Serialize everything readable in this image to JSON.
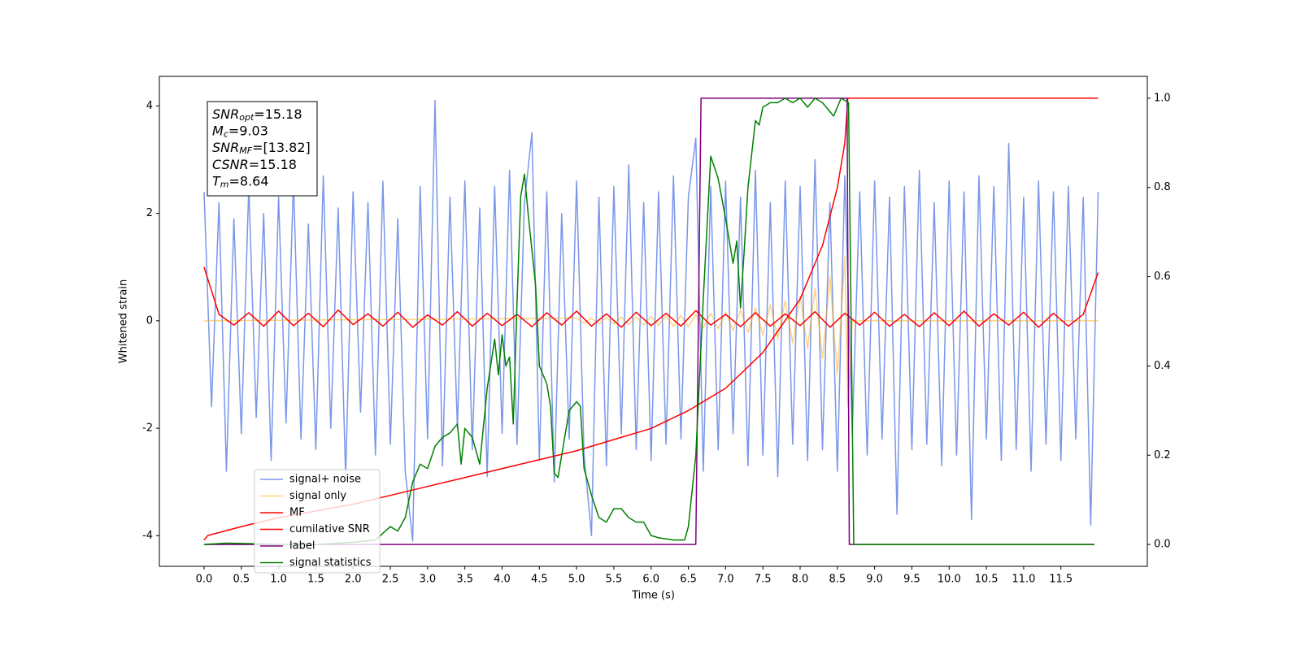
{
  "chart_data": {
    "type": "line",
    "xlabel": "Time (s)",
    "ylabel": "Whitened strain",
    "xlim": [
      -0.6,
      12.66
    ],
    "ylim": [
      -4.57,
      4.55
    ],
    "y2lim": [
      -0.049,
      1.049
    ],
    "xticks": [
      {
        "value": 0,
        "label": "0.0"
      },
      0.5,
      {
        "value": 1,
        "label": "1.0"
      },
      1.5,
      {
        "value": 2,
        "label": "2.0"
      },
      2.5,
      {
        "value": 3,
        "label": "3.0"
      },
      3.5,
      {
        "value": 4,
        "label": "4.0"
      },
      4.5,
      {
        "value": 5,
        "label": "5.0"
      },
      5.5,
      {
        "value": 6,
        "label": "6.0"
      },
      6.5,
      {
        "value": 7,
        "label": "7.0"
      },
      7.5,
      {
        "value": 8,
        "label": "8.0"
      },
      8.5,
      {
        "value": 9,
        "label": "9.0"
      },
      9.5,
      {
        "value": 10,
        "label": "10.0"
      },
      10.5,
      {
        "value": 11,
        "label": "11.0"
      },
      11.5
    ],
    "yticks": [
      -4,
      -2,
      0,
      2,
      4
    ],
    "y2ticks": [
      {
        "value": 0,
        "label": "0.0"
      },
      0.2,
      0.4,
      0.6,
      0.8,
      {
        "value": 1,
        "label": "1.0"
      }
    ],
    "legend": "lower left",
    "annotation": [
      {
        "base": "SNR",
        "sub": "opt",
        "rest": "=15.18"
      },
      {
        "base": "M",
        "sub": "c",
        "rest": "=9.03"
      },
      {
        "base": "SNR",
        "sub": "MF",
        "rest": "=[13.82]"
      },
      {
        "base": "CSNR",
        "rest": "=15.18"
      },
      {
        "base": "T",
        "sub": "m",
        "rest": "=8.64"
      }
    ],
    "series": [
      {
        "name": "signal+ noise",
        "color": "royalblue",
        "alpha": 0.7,
        "x": [
          0,
          0.1,
          0.2,
          0.3,
          0.4,
          0.5,
          0.6,
          0.7,
          0.8,
          0.9,
          1,
          1.1,
          1.2,
          1.3,
          1.4,
          1.5,
          1.6,
          1.7,
          1.8,
          1.9,
          2,
          2.1,
          2.2,
          2.3,
          2.4,
          2.5,
          2.6,
          2.7,
          2.8,
          2.9,
          3,
          3.1,
          3.2,
          3.3,
          3.4,
          3.5,
          3.6,
          3.7,
          3.8,
          3.9,
          4,
          4.1,
          4.2,
          4.3,
          4.4,
          4.5,
          4.6,
          4.7,
          4.8,
          4.9,
          5,
          5.1,
          5.2,
          5.3,
          5.4,
          5.5,
          5.6,
          5.7,
          5.8,
          5.9,
          6,
          6.1,
          6.2,
          6.3,
          6.4,
          6.5,
          6.6,
          6.7,
          6.8,
          6.9,
          7,
          7.1,
          7.2,
          7.3,
          7.4,
          7.5,
          7.6,
          7.7,
          7.8,
          7.9,
          8,
          8.1,
          8.2,
          8.3,
          8.4,
          8.5,
          8.6,
          8.7,
          8.8,
          8.9,
          9,
          9.1,
          9.2,
          9.3,
          9.4,
          9.5,
          9.6,
          9.7,
          9.8,
          9.9,
          10,
          10.1,
          10.2,
          10.3,
          10.4,
          10.5,
          10.6,
          10.7,
          10.8,
          10.9,
          11,
          11.1,
          11.2,
          11.3,
          11.4,
          11.5,
          11.6,
          11.7,
          11.8,
          11.9,
          12
        ],
        "values": [
          2.4,
          -1.6,
          2.2,
          -2.8,
          1.9,
          -2.1,
          2.5,
          -1.8,
          2.0,
          -2.6,
          2.3,
          -1.9,
          2.6,
          -2.2,
          1.8,
          -2.4,
          2.7,
          -2.0,
          2.1,
          -2.9,
          2.4,
          -1.7,
          2.2,
          -2.5,
          2.6,
          -2.3,
          1.9,
          -2.8,
          -4.1,
          2.5,
          -2.2,
          4.1,
          -2.7,
          2.3,
          -2.0,
          2.6,
          -2.4,
          2.1,
          -2.9,
          2.5,
          -2.1,
          2.8,
          -2.3,
          2.2,
          3.5,
          -2.6,
          2.4,
          -3.0,
          2.0,
          -2.2,
          2.6,
          -2.5,
          -4.0,
          2.3,
          -2.7,
          2.5,
          -2.1,
          2.9,
          -2.4,
          2.2,
          -2.6,
          2.4,
          -2.3,
          2.7,
          -2.2,
          2.3,
          3.4,
          -2.8,
          2.5,
          -2.4,
          2.6,
          -2.1,
          2.3,
          -2.7,
          2.8,
          -2.5,
          2.2,
          -2.9,
          2.6,
          -2.3,
          2.5,
          -2.6,
          3.0,
          -2.4,
          2.2,
          -2.8,
          2.7,
          -2.1,
          2.4,
          -2.5,
          2.6,
          -2.2,
          2.3,
          -3.6,
          2.5,
          -2.4,
          2.8,
          -2.3,
          2.2,
          -2.7,
          2.6,
          -2.5,
          2.4,
          -3.7,
          2.7,
          -2.2,
          2.5,
          -2.6,
          3.3,
          -2.4,
          2.3,
          -2.8,
          2.6,
          -2.3,
          2.4,
          -2.6,
          2.5,
          -2.2,
          2.3,
          -3.8,
          2.4
        ]
      },
      {
        "name": "signal only",
        "color": "orange",
        "alpha": 0.5,
        "x": [
          0,
          5,
          5.1,
          5.2,
          5.3,
          5.4,
          5.5,
          5.6,
          5.7,
          5.8,
          5.9,
          6,
          6.1,
          6.2,
          6.3,
          6.4,
          6.5,
          6.6,
          6.7,
          6.8,
          6.9,
          7,
          7.1,
          7.2,
          7.3,
          7.4,
          7.5,
          7.6,
          7.7,
          7.8,
          7.9,
          8,
          8.1,
          8.2,
          8.3,
          8.4,
          8.5,
          8.6,
          8.64,
          8.7,
          12
        ],
        "values": [
          0,
          0.05,
          -0.05,
          0.05,
          -0.06,
          0.06,
          -0.06,
          0.07,
          -0.07,
          0.07,
          -0.08,
          0.08,
          -0.09,
          0.09,
          -0.1,
          0.1,
          -0.11,
          0.12,
          -0.13,
          0.14,
          -0.15,
          0.16,
          -0.18,
          0.2,
          -0.22,
          0.24,
          -0.27,
          0.3,
          -0.33,
          0.37,
          -0.41,
          0.46,
          -0.52,
          0.6,
          -0.7,
          0.82,
          -1.0,
          1.2,
          -1.6,
          0,
          0
        ]
      },
      {
        "name": "MF",
        "color": "red",
        "x": [
          0,
          0.2,
          0.4,
          0.6,
          0.8,
          1,
          1.2,
          1.4,
          1.6,
          1.8,
          2,
          2.2,
          2.4,
          2.6,
          2.8,
          3,
          3.2,
          3.4,
          3.6,
          3.8,
          4,
          4.2,
          4.4,
          4.6,
          4.8,
          5,
          5.2,
          5.4,
          5.6,
          5.8,
          6,
          6.2,
          6.4,
          6.6,
          6.8,
          7,
          7.2,
          7.4,
          7.6,
          7.8,
          8,
          8.2,
          8.4,
          8.6,
          8.8,
          9,
          9.2,
          9.4,
          9.6,
          9.8,
          10,
          10.2,
          10.4,
          10.6,
          10.8,
          11,
          11.2,
          11.4,
          11.6,
          11.8,
          12
        ],
        "values": [
          1.0,
          0.12,
          -0.08,
          0.15,
          -0.1,
          0.18,
          -0.09,
          0.14,
          -0.11,
          0.2,
          -0.07,
          0.13,
          -0.1,
          0.16,
          -0.12,
          0.11,
          -0.08,
          0.17,
          -0.1,
          0.14,
          -0.09,
          0.12,
          -0.11,
          0.15,
          -0.08,
          0.18,
          -0.1,
          0.13,
          -0.12,
          0.16,
          -0.09,
          0.14,
          -0.1,
          0.19,
          -0.08,
          0.12,
          -0.11,
          0.15,
          -0.1,
          0.13,
          -0.09,
          0.17,
          -0.12,
          0.14,
          -0.08,
          0.16,
          -0.1,
          0.12,
          -0.11,
          0.15,
          -0.09,
          0.18,
          -0.1,
          0.13,
          -0.08,
          0.16,
          -0.12,
          0.14,
          -0.1,
          0.12,
          0.9
        ]
      },
      {
        "name": "cumilative SNR",
        "color": "red",
        "axis": "y2",
        "x": [
          0,
          0.05,
          0.5,
          1,
          1.5,
          2,
          2.5,
          3,
          3.5,
          4,
          4.5,
          5,
          5.5,
          6,
          6.5,
          7,
          7.5,
          8,
          8.3,
          8.5,
          8.6,
          8.64,
          12
        ],
        "values": [
          0.01,
          0.02,
          0.04,
          0.06,
          0.075,
          0.09,
          0.11,
          0.13,
          0.15,
          0.17,
          0.19,
          0.21,
          0.235,
          0.26,
          0.3,
          0.35,
          0.43,
          0.55,
          0.67,
          0.8,
          0.9,
          1.0,
          1.0
        ]
      },
      {
        "name": "label",
        "color": "purple",
        "axis": "y2",
        "x": [
          0,
          6.6,
          6.67,
          8.63,
          8.66,
          11.95
        ],
        "values": [
          0,
          0,
          1,
          1,
          0,
          0
        ]
      },
      {
        "name": "signal statistics",
        "color": "green",
        "axis": "y2",
        "x": [
          0,
          0.3,
          0.6,
          1,
          1.5,
          2,
          2.3,
          2.5,
          2.6,
          2.7,
          2.8,
          2.9,
          3,
          3.1,
          3.2,
          3.3,
          3.4,
          3.45,
          3.5,
          3.6,
          3.7,
          3.8,
          3.9,
          3.95,
          4,
          4.05,
          4.1,
          4.15,
          4.2,
          4.25,
          4.3,
          4.35,
          4.45,
          4.5,
          4.6,
          4.65,
          4.7,
          4.75,
          4.8,
          4.9,
          5,
          5.05,
          5.1,
          5.2,
          5.3,
          5.4,
          5.5,
          5.6,
          5.7,
          5.8,
          5.9,
          6,
          6.1,
          6.3,
          6.45,
          6.5,
          6.6,
          6.7,
          6.8,
          6.9,
          7,
          7.1,
          7.15,
          7.2,
          7.25,
          7.3,
          7.4,
          7.45,
          7.5,
          7.6,
          7.7,
          7.8,
          7.9,
          8,
          8.1,
          8.2,
          8.3,
          8.45,
          8.55,
          8.65,
          8.72,
          11.95
        ],
        "values": [
          0,
          0.003,
          0.002,
          0,
          0,
          0.005,
          0.01,
          0.04,
          0.03,
          0.06,
          0.14,
          0.18,
          0.17,
          0.22,
          0.24,
          0.25,
          0.27,
          0.18,
          0.26,
          0.24,
          0.18,
          0.35,
          0.46,
          0.38,
          0.47,
          0.4,
          0.42,
          0.27,
          0.54,
          0.78,
          0.83,
          0.74,
          0.58,
          0.4,
          0.36,
          0.31,
          0.16,
          0.15,
          0.2,
          0.3,
          0.32,
          0.31,
          0.17,
          0.11,
          0.06,
          0.05,
          0.08,
          0.08,
          0.06,
          0.05,
          0.05,
          0.02,
          0.015,
          0.01,
          0.01,
          0.04,
          0.2,
          0.55,
          0.87,
          0.82,
          0.73,
          0.63,
          0.68,
          0.53,
          0.66,
          0.8,
          0.95,
          0.94,
          0.98,
          0.99,
          0.99,
          1.0,
          0.99,
          1.0,
          0.98,
          1.0,
          0.99,
          0.96,
          1.0,
          0.99,
          0,
          0
        ]
      }
    ]
  }
}
